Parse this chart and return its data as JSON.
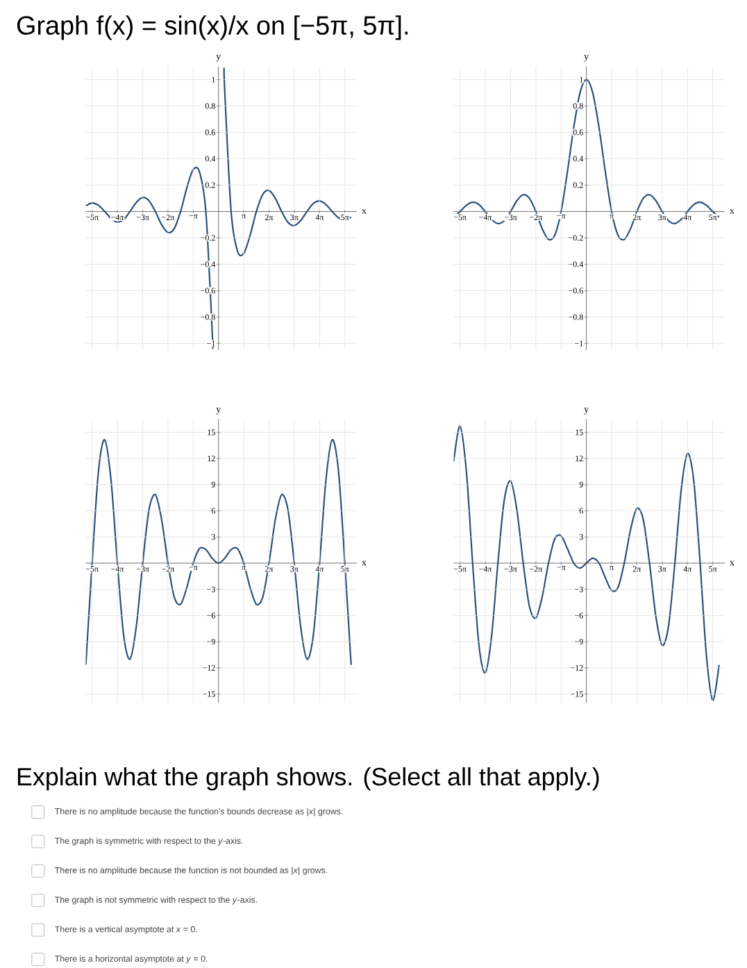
{
  "chart_data": [
    {
      "type": "other",
      "title": "Graph f(x) = sin(x)/x on [−5π, 5π]."
    },
    {
      "type": "line",
      "color": "#2b4f7a",
      "grid": true,
      "xlabel": "x",
      "ylabel": "y",
      "xlim": [
        -16.5,
        17.2
      ],
      "ylim": [
        -1.05,
        1.1
      ],
      "x": [
        -16.49,
        -15.71,
        -14.92,
        -14.14,
        -13.35,
        -12.57,
        -11.78,
        -11.0,
        -10.21,
        -9.42,
        -8.64,
        -7.85,
        -7.07,
        -6.28,
        -5.5,
        -4.71,
        -3.93,
        -3.14,
        -2.36,
        -1.57,
        -0.79,
        -0.72,
        0,
        0.7,
        0.79,
        1.57,
        2.36,
        3.14,
        3.93,
        4.71,
        5.5,
        6.28,
        7.07,
        7.85,
        8.64,
        9.42,
        10.21,
        11.0,
        11.78,
        12.57,
        13.35,
        14.14,
        14.92,
        15.71,
        16.49
      ],
      "values": [
        0.043,
        0.064,
        0.047,
        0,
        -0.053,
        -0.08,
        -0.06,
        0,
        0.069,
        0.106,
        0.082,
        0,
        -0.1,
        -0.159,
        -0.129,
        0,
        0.18,
        0.318,
        0.3,
        0,
        -0.9,
        -1.04,
        null,
        1.09,
        0.9,
        0,
        -0.3,
        -0.318,
        -0.18,
        0,
        0.129,
        0.159,
        0.1,
        0,
        -0.082,
        -0.106,
        -0.069,
        0,
        0.06,
        0.08,
        0.053,
        0,
        -0.047,
        -0.064,
        -0.043
      ],
      "xticks": [
        {
          "value": -15.71,
          "label": "−5π"
        },
        {
          "value": -12.57,
          "label": "−4π"
        },
        {
          "value": -9.42,
          "label": "−3π"
        },
        {
          "value": -6.28,
          "label": "−2π"
        },
        {
          "value": -3.14,
          "label": "−π"
        },
        {
          "value": 3.14,
          "label": "π"
        },
        {
          "value": 6.28,
          "label": "2π"
        },
        {
          "value": 9.42,
          "label": "3π"
        },
        {
          "value": 12.57,
          "label": "4π"
        },
        {
          "value": 15.71,
          "label": "5π"
        }
      ],
      "yticks": [
        {
          "value": -1,
          "label": "−1"
        },
        {
          "value": -0.8,
          "label": "−0.8"
        },
        {
          "value": -0.6,
          "label": "−0.6"
        },
        {
          "value": -0.4,
          "label": "−0.4"
        },
        {
          "value": -0.2,
          "label": "−0.2"
        },
        0.2,
        0.4,
        0.6,
        0.8,
        1
      ]
    },
    {
      "type": "line",
      "color": "#2b4f7a",
      "grid": true,
      "xlabel": "x",
      "ylabel": "y",
      "xlim": [
        -16.5,
        17.2
      ],
      "ylim": [
        -1.05,
        1.1
      ],
      "x": [
        -16.49,
        -15.71,
        -14.92,
        -14.14,
        -13.35,
        -12.57,
        -11.78,
        -11.0,
        -10.21,
        -9.42,
        -8.64,
        -7.85,
        -7.07,
        -6.28,
        -5.5,
        -4.71,
        -3.93,
        -3.14,
        -2.36,
        -1.57,
        -0.79,
        0,
        0.79,
        1.57,
        2.36,
        3.14,
        3.93,
        4.71,
        5.5,
        6.28,
        7.07,
        7.85,
        8.64,
        9.42,
        10.21,
        11.0,
        11.78,
        12.57,
        13.35,
        14.14,
        14.92,
        15.71,
        16.49
      ],
      "values": [
        -0.043,
        0,
        0.047,
        0.071,
        0.053,
        0,
        -0.06,
        -0.091,
        -0.069,
        0,
        0.082,
        0.127,
        0.1,
        0,
        -0.129,
        -0.212,
        -0.18,
        0,
        0.3,
        0.637,
        0.9,
        1,
        0.9,
        0.637,
        0.3,
        0,
        -0.18,
        -0.212,
        -0.129,
        0,
        0.1,
        0.127,
        0.082,
        0,
        -0.069,
        -0.091,
        -0.06,
        0,
        0.053,
        0.071,
        0.047,
        0,
        -0.043
      ],
      "xticks": [
        {
          "value": -15.71,
          "label": "−5π"
        },
        {
          "value": -12.57,
          "label": "−4π"
        },
        {
          "value": -9.42,
          "label": "−3π"
        },
        {
          "value": -6.28,
          "label": "−2π"
        },
        {
          "value": -3.14,
          "label": "−π"
        },
        {
          "value": 3.14,
          "label": "π"
        },
        {
          "value": 6.28,
          "label": "2π"
        },
        {
          "value": 9.42,
          "label": "3π"
        },
        {
          "value": 12.57,
          "label": "4π"
        },
        {
          "value": 15.71,
          "label": "5π"
        }
      ],
      "yticks": [
        {
          "value": -1,
          "label": "−1"
        },
        {
          "value": -0.8,
          "label": "−0.8"
        },
        {
          "value": -0.6,
          "label": "−0.6"
        },
        {
          "value": -0.4,
          "label": "−0.4"
        },
        {
          "value": -0.2,
          "label": "−0.2"
        },
        0.2,
        0.4,
        0.6,
        0.8,
        1
      ]
    },
    {
      "type": "line",
      "color": "#2b4f7a",
      "grid": true,
      "xlabel": "x",
      "ylabel": "y",
      "xlim": [
        -16.5,
        17.2
      ],
      "ylim": [
        -16,
        16.5
      ],
      "x": [
        -16.49,
        -15.71,
        -14.92,
        -14.14,
        -13.35,
        -12.57,
        -11.78,
        -11.0,
        -10.21,
        -9.42,
        -8.64,
        -7.85,
        -7.07,
        -6.28,
        -5.5,
        -4.71,
        -3.93,
        -3.14,
        -2.36,
        -1.57,
        -0.79,
        0,
        0.79,
        1.57,
        2.36,
        3.14,
        3.93,
        4.71,
        5.5,
        6.28,
        7.07,
        7.85,
        8.64,
        9.42,
        10.21,
        11.0,
        11.78,
        12.57,
        13.35,
        14.14,
        14.92,
        15.71,
        16.49
      ],
      "values": [
        -11.66,
        0,
        10.55,
        14.14,
        9.44,
        0,
        -8.33,
        -11.0,
        -7.22,
        0,
        6.11,
        7.85,
        5.0,
        0,
        -3.89,
        -4.71,
        -2.78,
        0,
        1.67,
        1.57,
        0.56,
        0,
        0.56,
        1.57,
        1.67,
        0,
        -2.78,
        -4.71,
        -3.89,
        0,
        5.0,
        7.85,
        6.11,
        0,
        -7.22,
        -11.0,
        -8.33,
        0,
        9.44,
        14.14,
        10.55,
        0,
        -11.66
      ],
      "xticks": [
        {
          "value": -15.71,
          "label": "−5π"
        },
        {
          "value": -12.57,
          "label": "−4π"
        },
        {
          "value": -9.42,
          "label": "−3π"
        },
        {
          "value": -6.28,
          "label": "−2π"
        },
        {
          "value": -3.14,
          "label": "−π"
        },
        {
          "value": 3.14,
          "label": "π"
        },
        {
          "value": 6.28,
          "label": "2π"
        },
        {
          "value": 9.42,
          "label": "3π"
        },
        {
          "value": 12.57,
          "label": "4π"
        },
        {
          "value": 15.71,
          "label": "5π"
        }
      ],
      "yticks": [
        {
          "value": -15,
          "label": "−15"
        },
        {
          "value": -12,
          "label": "−12"
        },
        {
          "value": -9,
          "label": "−9"
        },
        {
          "value": -6,
          "label": "−6"
        },
        {
          "value": -3,
          "label": "−3"
        },
        3,
        6,
        9,
        12,
        15
      ]
    },
    {
      "type": "line",
      "color": "#2b4f7a",
      "grid": true,
      "xlabel": "x",
      "ylabel": "y",
      "xlim": [
        -16.5,
        17.2
      ],
      "ylim": [
        -16,
        16.5
      ],
      "x": [
        -16.49,
        -15.71,
        -14.92,
        -14.14,
        -13.35,
        -12.57,
        -11.78,
        -11.0,
        -10.21,
        -9.42,
        -8.64,
        -7.85,
        -7.07,
        -6.28,
        -5.5,
        -4.71,
        -3.93,
        -3.14,
        -2.36,
        -1.57,
        -0.79,
        0,
        0.79,
        1.57,
        2.36,
        3.14,
        3.93,
        4.71,
        5.5,
        6.28,
        7.07,
        7.85,
        8.64,
        9.42,
        10.21,
        11.0,
        11.78,
        12.57,
        13.35,
        14.14,
        14.92,
        15.71,
        16.49
      ],
      "values": [
        11.66,
        15.71,
        10.55,
        0,
        -9.44,
        -12.57,
        -8.33,
        0,
        7.22,
        9.42,
        6.11,
        0,
        -5.0,
        -6.28,
        -3.89,
        0,
        2.78,
        3.14,
        1.67,
        0,
        -0.56,
        0,
        0.56,
        0,
        -1.67,
        -3.14,
        -2.78,
        0,
        3.89,
        6.28,
        5.0,
        0,
        -6.11,
        -9.42,
        -7.22,
        0,
        8.33,
        12.57,
        9.44,
        0,
        -10.55,
        -15.71,
        -11.66
      ],
      "xticks": [
        {
          "value": -15.71,
          "label": "−5π"
        },
        {
          "value": -12.57,
          "label": "−4π"
        },
        {
          "value": -9.42,
          "label": "−3π"
        },
        {
          "value": -6.28,
          "label": "−2π"
        },
        {
          "value": -3.14,
          "label": "−π"
        },
        {
          "value": 3.14,
          "label": "π"
        },
        {
          "value": 6.28,
          "label": "2π"
        },
        {
          "value": 9.42,
          "label": "3π"
        },
        {
          "value": 12.57,
          "label": "4π"
        },
        {
          "value": 15.71,
          "label": "5π"
        }
      ],
      "yticks": [
        {
          "value": -15,
          "label": "−15"
        },
        {
          "value": -12,
          "label": "−12"
        },
        {
          "value": -9,
          "label": "−9"
        },
        {
          "value": -6,
          "label": "−6"
        },
        {
          "value": -3,
          "label": "−3"
        },
        3,
        6,
        9,
        12,
        15
      ]
    },
    {
      "type": "other",
      "title": "Explain what the graph shows. (Select all that apply.)",
      "annotations": [
        "There is no amplitude because the function's bounds decrease as |*x*| grows.",
        "The graph is symmetric with respect to the *y*-axis.",
        "There is no amplitude because the function is not bounded as |*x*| grows.",
        "The graph is not symmetric with respect to the *y*-axis.",
        "There is a vertical asymptote at *x* = 0.",
        "There is a horizontal asymptote at *y* = 0."
      ]
    }
  ]
}
